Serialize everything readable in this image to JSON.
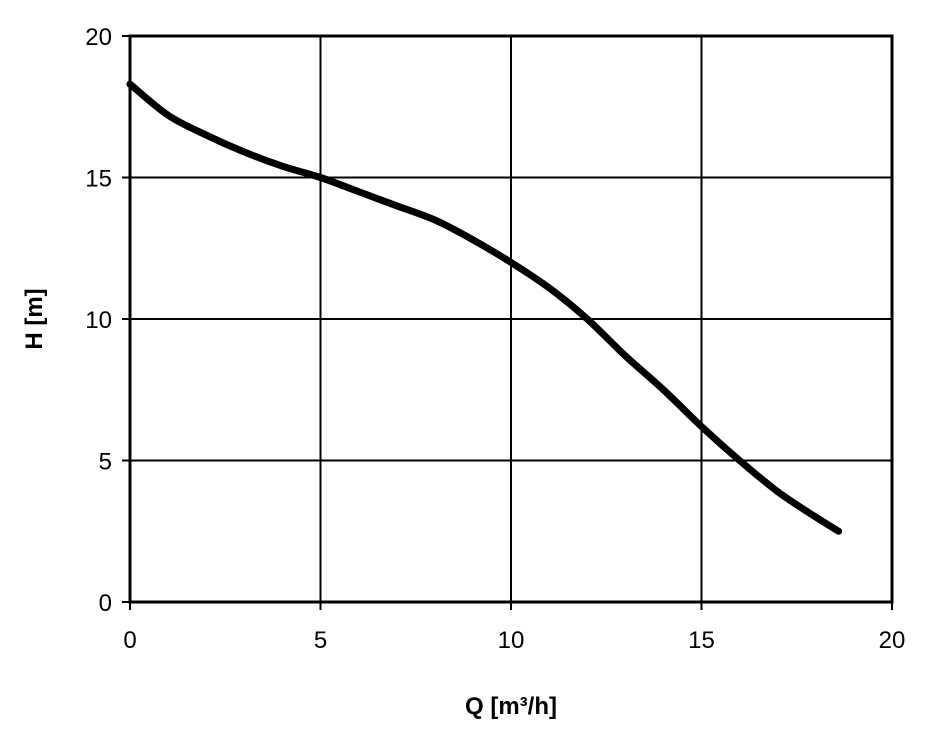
{
  "chart_data": {
    "type": "line",
    "title": "",
    "xlabel": "Q [m³/h]",
    "ylabel": "H [m]",
    "xlim": [
      0,
      20
    ],
    "ylim": [
      0,
      20
    ],
    "xticks": [
      "0",
      "5",
      "10",
      "15",
      "20"
    ],
    "yticks": [
      "0",
      "5",
      "10",
      "15",
      "20"
    ],
    "grid": true,
    "legend": "none",
    "series": [
      {
        "x": [
          0,
          1,
          2,
          3,
          4,
          5,
          6,
          7,
          8,
          9,
          10,
          11,
          12,
          13,
          14,
          15,
          16,
          17,
          18,
          18.6
        ],
        "y": [
          18.3,
          17.2,
          16.5,
          15.9,
          15.4,
          15.0,
          14.5,
          14.0,
          13.5,
          12.8,
          12.0,
          11.1,
          10.0,
          8.7,
          7.5,
          6.2,
          5.0,
          3.9,
          3.0,
          2.5
        ],
        "color": "#000000"
      }
    ]
  }
}
